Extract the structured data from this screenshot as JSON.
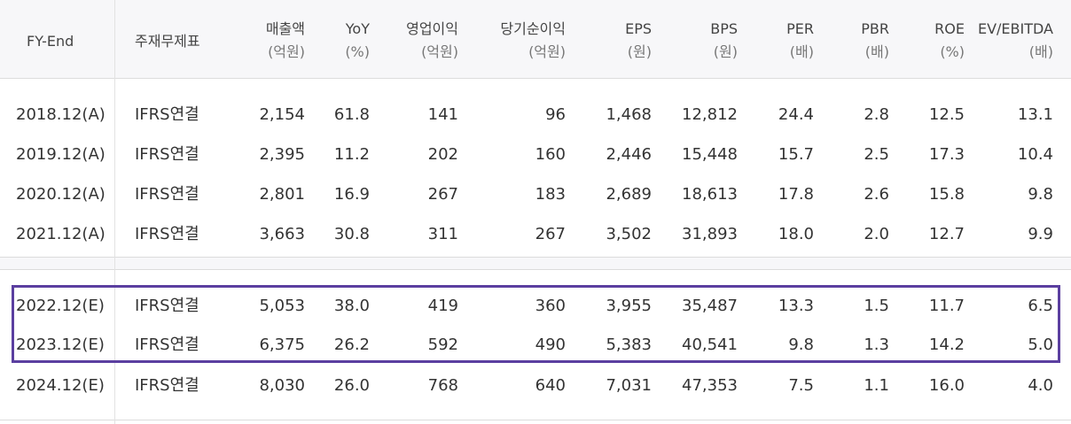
{
  "headers": [
    {
      "label": "FY-End",
      "unit": ""
    },
    {
      "label": "주재무제표",
      "unit": ""
    },
    {
      "label": "매출액",
      "unit": "(억원)"
    },
    {
      "label": "YoY",
      "unit": "(%)"
    },
    {
      "label": "영업이익",
      "unit": "(억원)"
    },
    {
      "label": "당기순이익",
      "unit": "(억원)"
    },
    {
      "label": "EPS",
      "unit": "(원)"
    },
    {
      "label": "BPS",
      "unit": "(원)"
    },
    {
      "label": "PER",
      "unit": "(배)"
    },
    {
      "label": "PBR",
      "unit": "(배)"
    },
    {
      "label": "ROE",
      "unit": "(%)"
    },
    {
      "label": "EV/EBITDA",
      "unit": "(배)"
    }
  ],
  "rows": [
    [
      "2018.12(A)",
      "IFRS연결",
      "2,154",
      "61.8",
      "141",
      "96",
      "1,468",
      "12,812",
      "24.4",
      "2.8",
      "12.5",
      "13.1"
    ],
    [
      "2019.12(A)",
      "IFRS연결",
      "2,395",
      "11.2",
      "202",
      "160",
      "2,446",
      "15,448",
      "15.7",
      "2.5",
      "17.3",
      "10.4"
    ],
    [
      "2020.12(A)",
      "IFRS연결",
      "2,801",
      "16.9",
      "267",
      "183",
      "2,689",
      "18,613",
      "17.8",
      "2.6",
      "15.8",
      "9.8"
    ],
    [
      "2021.12(A)",
      "IFRS연결",
      "3,663",
      "30.8",
      "311",
      "267",
      "3,502",
      "31,893",
      "18.0",
      "2.0",
      "12.7",
      "9.9"
    ],
    [
      "2022.12(E)",
      "IFRS연결",
      "5,053",
      "38.0",
      "419",
      "360",
      "3,955",
      "35,487",
      "13.3",
      "1.5",
      "11.7",
      "6.5"
    ],
    [
      "2023.12(E)",
      "IFRS연결",
      "6,375",
      "26.2",
      "592",
      "490",
      "5,383",
      "40,541",
      "9.8",
      "1.3",
      "14.2",
      "5.0"
    ],
    [
      "2024.12(E)",
      "IFRS연결",
      "8,030",
      "26.0",
      "768",
      "640",
      "7,031",
      "47,353",
      "7.5",
      "1.1",
      "16.0",
      "4.0"
    ]
  ],
  "highlight_color": "#5b3fa0"
}
